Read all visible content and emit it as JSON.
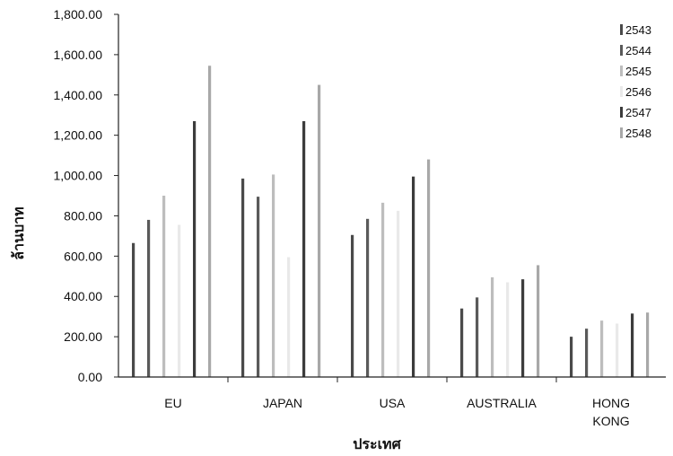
{
  "chart_data": {
    "type": "bar",
    "title": "",
    "xlabel": "ประเทศ",
    "ylabel": "ล้านบาท",
    "ylim": [
      0,
      1800
    ],
    "y_tick_labels": [
      "0.00",
      "200.00",
      "400.00",
      "600.00",
      "800.00",
      "1,000.00",
      "1,200.00",
      "1,400.00",
      "1,600.00",
      "1,800.00"
    ],
    "categories": [
      "EU",
      "JAPAN",
      "USA",
      "AUSTRALIA",
      "HONG KONG"
    ],
    "series": [
      {
        "name": "2543",
        "color": "#4a4a4a",
        "values": [
          665,
          985,
          705,
          340,
          200
        ]
      },
      {
        "name": "2544",
        "color": "#5a5a5a",
        "values": [
          780,
          895,
          785,
          395,
          240
        ]
      },
      {
        "name": "2545",
        "color": "#bdbdbd",
        "values": [
          900,
          1005,
          865,
          495,
          280
        ]
      },
      {
        "name": "2546",
        "color": "#e9e9e9",
        "values": [
          755,
          595,
          825,
          470,
          265
        ]
      },
      {
        "name": "2547",
        "color": "#3c3c3c",
        "values": [
          1270,
          1270,
          995,
          485,
          315
        ]
      },
      {
        "name": "2548",
        "color": "#a8a8a8",
        "values": [
          1545,
          1450,
          1080,
          555,
          320
        ]
      }
    ],
    "legend_position": "right",
    "grid": false
  }
}
